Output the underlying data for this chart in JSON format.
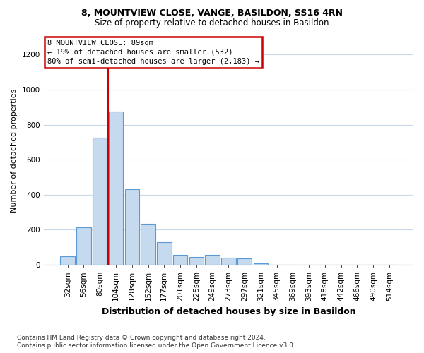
{
  "title1": "8, MOUNTVIEW CLOSE, VANGE, BASILDON, SS16 4RN",
  "title2": "Size of property relative to detached houses in Basildon",
  "xlabel": "Distribution of detached houses by size in Basildon",
  "ylabel": "Number of detached properties",
  "footnote": "Contains HM Land Registry data © Crown copyright and database right 2024.\nContains public sector information licensed under the Open Government Licence v3.0.",
  "annotation_title": "8 MOUNTVIEW CLOSE: 89sqm",
  "annotation_line1": "← 19% of detached houses are smaller (532)",
  "annotation_line2": "80% of semi-detached houses are larger (2,183) →",
  "bar_categories": [
    "32sqm",
    "56sqm",
    "80sqm",
    "104sqm",
    "128sqm",
    "152sqm",
    "177sqm",
    "201sqm",
    "225sqm",
    "249sqm",
    "273sqm",
    "297sqm",
    "321sqm",
    "345sqm",
    "369sqm",
    "393sqm",
    "418sqm",
    "442sqm",
    "466sqm",
    "490sqm",
    "514sqm"
  ],
  "bar_values": [
    50,
    215,
    725,
    875,
    430,
    235,
    130,
    55,
    45,
    55,
    40,
    35,
    10,
    0,
    0,
    0,
    0,
    0,
    0,
    0,
    0
  ],
  "bar_color": "#c5d9ef",
  "bar_edge_color": "#5b9bd5",
  "red_line_color": "#cc0000",
  "red_line_index": 2.5,
  "ylim": [
    0,
    1300
  ],
  "yticks": [
    0,
    200,
    400,
    600,
    800,
    1000,
    1200
  ],
  "background_color": "#ffffff",
  "grid_color": "#c8d8e8",
  "annotation_box_color": "#ffffff",
  "annotation_box_edge": "#cc0000",
  "title1_fontsize": 9,
  "title2_fontsize": 8.5,
  "ylabel_fontsize": 8,
  "xlabel_fontsize": 9,
  "footnote_fontsize": 6.5,
  "tick_fontsize": 7.5,
  "annot_fontsize": 7.5
}
